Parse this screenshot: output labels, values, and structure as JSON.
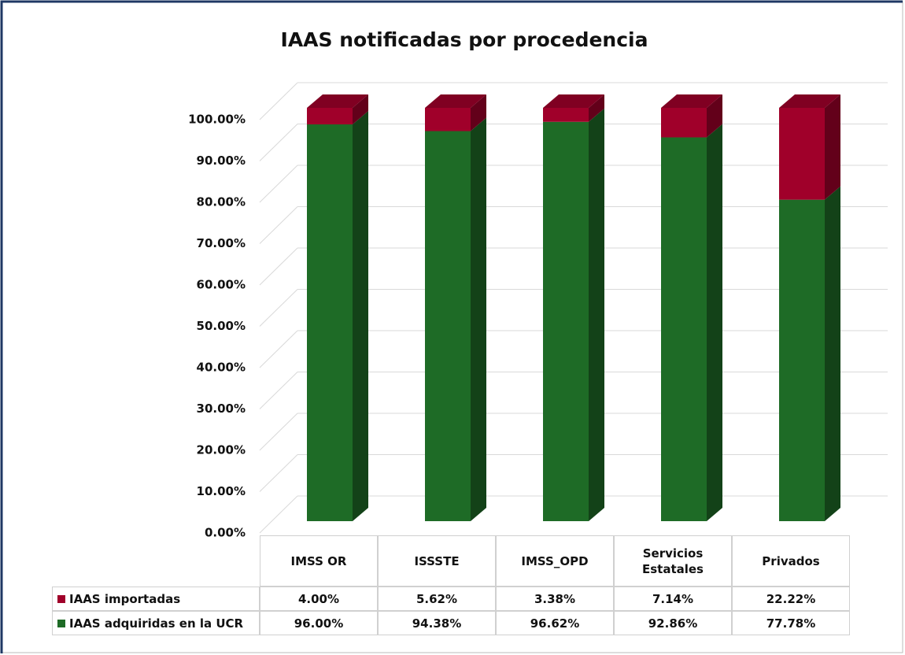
{
  "chart_data": {
    "type": "bar3d_stacked",
    "title": "IAAS notificadas por procedencia",
    "categories": [
      "IMSS OR",
      "ISSSTE",
      "IMSS_OPD",
      "Servicios Estatales",
      "Privados"
    ],
    "series": [
      {
        "name": "IAAS importadas",
        "color": "#a0002a",
        "values": [
          4.0,
          5.62,
          3.38,
          7.14,
          22.22
        ],
        "value_labels": [
          "4.00%",
          "5.62%",
          "3.38%",
          "7.14%",
          "22.22%"
        ]
      },
      {
        "name": "IAAS adquiridas en la UCR",
        "color": "#1e6b26",
        "values": [
          96.0,
          94.38,
          96.62,
          92.86,
          77.78
        ],
        "value_labels": [
          "96.00%",
          "94.38%",
          "96.62%",
          "92.86%",
          "77.78%"
        ]
      }
    ],
    "stack_order": [
      "IAAS adquiridas en la UCR",
      "IAAS importadas"
    ],
    "ylim": [
      0,
      100
    ],
    "yticks": [
      {
        "value": 0,
        "label": "0.00%"
      },
      {
        "value": 10,
        "label": "10.00%"
      },
      {
        "value": 20,
        "label": "20.00%"
      },
      {
        "value": 30,
        "label": "30.00%"
      },
      {
        "value": 40,
        "label": "40.00%"
      },
      {
        "value": 50,
        "label": "50.00%"
      },
      {
        "value": 60,
        "label": "60.00%"
      },
      {
        "value": 70,
        "label": "70.00%"
      },
      {
        "value": 80,
        "label": "80.00%"
      },
      {
        "value": 90,
        "label": "90.00%"
      },
      {
        "value": 100,
        "label": "100.00%"
      }
    ],
    "grid": true
  }
}
